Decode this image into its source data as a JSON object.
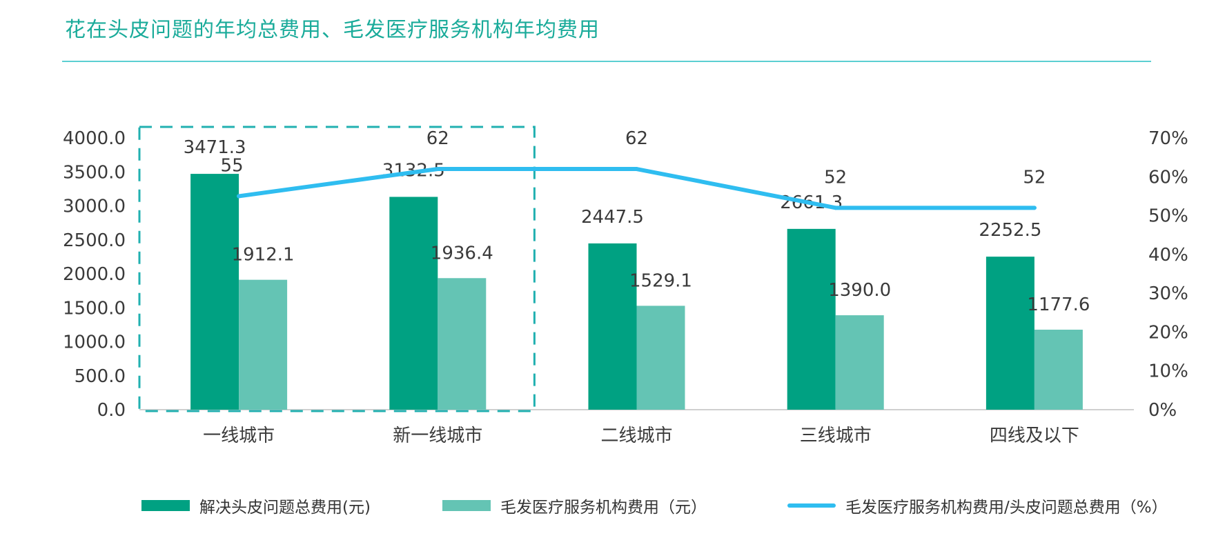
{
  "title": "花在头皮问题的年均总费用、毛发医疗服务机构年均费用",
  "colors": {
    "title": "#1aab9a",
    "rule": "#5ccfd2",
    "series_total": "#00a182",
    "series_institution": "#64c4b4",
    "series_ratio": "#2fbdf0",
    "highlight_box": "#21b0b0"
  },
  "legend": {
    "total": "解决头皮问题总费用(元)",
    "institution": "毛发医疗服务机构费用（元）",
    "ratio": "毛发医疗服务机构费用/头皮问题总费用（%）"
  },
  "chart_data": {
    "type": "bar",
    "title": "花在头皮问题的年均总费用、毛发医疗服务机构年均费用",
    "categories": [
      "一线城市",
      "新一线城市",
      "二线城市",
      "三线城市",
      "四线及以下"
    ],
    "series": [
      {
        "name": "解决头皮问题总费用(元)",
        "type": "bar",
        "axis": "left",
        "values": [
          3471.3,
          3132.5,
          2447.5,
          2661.3,
          2252.5
        ],
        "labels": [
          "3471.3",
          "3132.5",
          "2447.5",
          "2661.3",
          "2252.5"
        ]
      },
      {
        "name": "毛发医疗服务机构费用（元）",
        "type": "bar",
        "axis": "left",
        "values": [
          1912.1,
          1936.4,
          1529.1,
          1390.0,
          1177.6
        ],
        "labels": [
          "1912.1",
          "1936.4",
          "1529.1",
          "1390.0",
          "1177.6"
        ]
      },
      {
        "name": "毛发医疗服务机构费用/头皮问题总费用（%）",
        "type": "line",
        "axis": "right",
        "values": [
          55,
          62,
          62,
          52,
          52
        ],
        "labels": [
          "55",
          "62",
          "62",
          "52",
          "52"
        ]
      }
    ],
    "y_left": {
      "min": 0,
      "max": 4000,
      "step": 500,
      "ticks": [
        "0.0",
        "500.0",
        "1000.0",
        "1500.0",
        "2000.0",
        "2500.0",
        "3000.0",
        "3500.0",
        "4000.0"
      ]
    },
    "y_right": {
      "min": 0,
      "max": 70,
      "step": 10,
      "ticks": [
        "0%",
        "10%",
        "20%",
        "30%",
        "40%",
        "50%",
        "60%",
        "70%"
      ]
    },
    "highlight_categories": [
      "一线城市",
      "新一线城市"
    ],
    "grid": false,
    "legend_position": "bottom"
  }
}
